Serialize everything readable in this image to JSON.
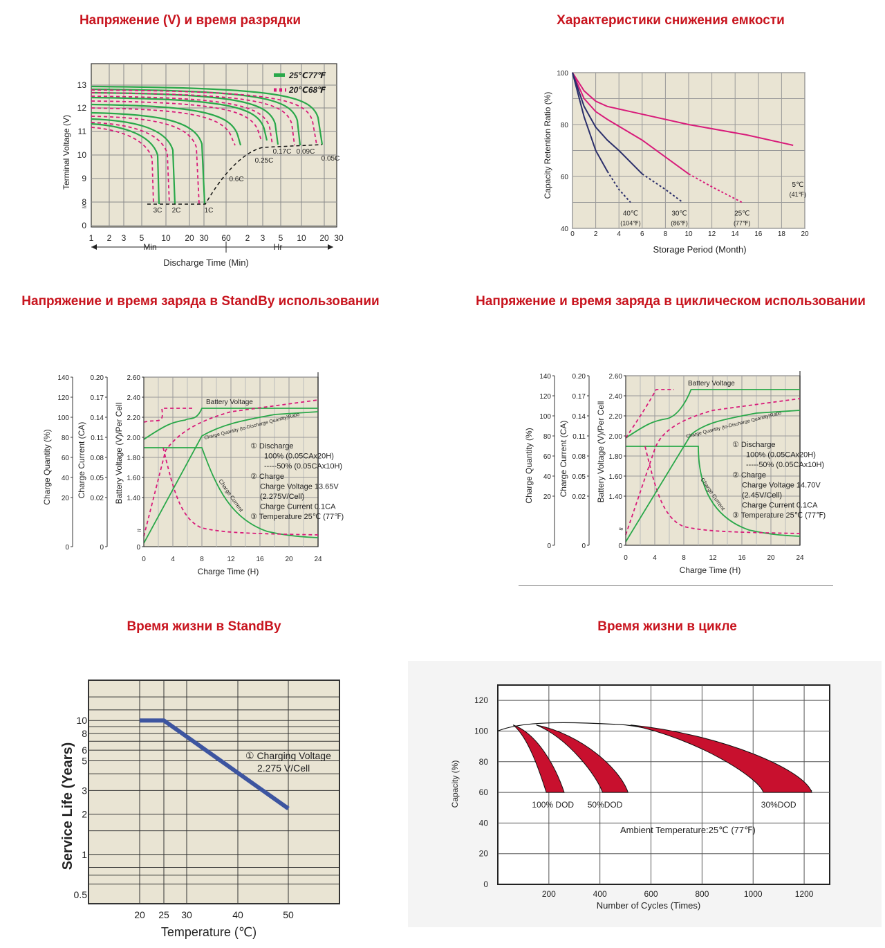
{
  "titles": {
    "t1": "Напряжение (V) и время разрядки",
    "t2": "Характеристики снижения емкости",
    "t3": "Напряжение и время заряда в StandBy использовании",
    "t4": "Напряжение и время заряда в циклическом использовании",
    "t5": "Время жизни в StandBy",
    "t6": "Время жизни в цикле"
  },
  "colors": {
    "title_red": "#c8141e",
    "green": "#2aa84a",
    "magenta": "#d81b7a",
    "navy": "#2b2f6b",
    "blue": "#3d55a0",
    "dark_red": "#c8102e",
    "plot_bg": "#e9e4d3"
  },
  "chart_data": [
    {
      "type": "line",
      "ylabel": "Terminal Voltage (V)",
      "xlabel": "Discharge Time (Min)",
      "y_ticks": [
        "13",
        "12",
        "11",
        "10",
        "9",
        "8",
        "0"
      ],
      "x_ticks": [
        "1",
        "2",
        "3",
        "5",
        "10",
        "20",
        "30",
        "60",
        "2",
        "3",
        "5",
        "10",
        "20",
        "30"
      ],
      "x_unit_labels": [
        "Min",
        "Hr"
      ],
      "legend": [
        "25℃77℉",
        "20℃68℉"
      ],
      "series_labels": [
        "3C",
        "2C",
        "1C",
        "0.6C",
        "0.25C",
        "0.17C",
        "0.09C",
        "0.05C"
      ]
    },
    {
      "type": "line",
      "ylabel": "Capacity Retention Ratio (%)",
      "xlabel": "Storage Period (Month)",
      "ylim": [
        40,
        100
      ],
      "xlim": [
        0,
        20
      ],
      "y_ticks": [
        "100",
        "80",
        "60",
        "40"
      ],
      "x_ticks": [
        "0",
        "2",
        "4",
        "6",
        "8",
        "10",
        "12",
        "14",
        "16",
        "18",
        "20"
      ],
      "series": [
        {
          "name": "5℃ (41℉)",
          "x": [
            0,
            1,
            2,
            3,
            5,
            10,
            15,
            19
          ],
          "y": [
            100,
            93,
            89,
            87,
            85,
            80,
            76,
            72
          ]
        },
        {
          "name": "25℃ (77℉)",
          "x": [
            0,
            1,
            2,
            3,
            6,
            10,
            12,
            14.6
          ],
          "y": [
            100,
            90,
            85,
            82,
            74,
            61,
            56,
            50
          ]
        },
        {
          "name": "30℃ (86℉)",
          "x": [
            0,
            1,
            2,
            3,
            4,
            6,
            8,
            9.5
          ],
          "y": [
            100,
            87,
            79,
            74,
            70,
            61,
            55,
            50
          ]
        },
        {
          "name": "40℃ (104℉)",
          "x": [
            0,
            1,
            2,
            3,
            4,
            5
          ],
          "y": [
            100,
            83,
            70,
            62,
            55,
            50
          ]
        }
      ]
    },
    {
      "type": "line",
      "axis_labels": [
        "Charge Quantity (%)",
        "Charge Current (CA)",
        "Battery Voltage (V)/Per Cell"
      ],
      "xlabel": "Charge Time (H)",
      "x_ticks": [
        "0",
        "4",
        "8",
        "12",
        "16",
        "20",
        "24"
      ],
      "y_ticks_quantity": [
        "140",
        "120",
        "100",
        "80",
        "60",
        "40",
        "20",
        "0"
      ],
      "y_ticks_current": [
        "0.20",
        "0.17",
        "0.14",
        "0.11",
        "0.08",
        "0.05",
        "0.02",
        "0"
      ],
      "y_ticks_voltage": [
        "2.60",
        "2.40",
        "2.20",
        "2.00",
        "1.80",
        "1.60",
        "1.40",
        "0"
      ],
      "curve_labels": [
        "Battery Voltage",
        "Charge Quantity (to-Discharge Quantity)Ratio",
        "Charge Current"
      ],
      "notes": [
        "① Discharge",
        "100% (0.05CAx20H)",
        "-----50% (0.05CAx10H)",
        "② Charge",
        "Charge Voltage 13.65V",
        "(2.275V/Cell)",
        "Charge Current 0.1CA",
        "③ Temperature 25℃ (77℉)"
      ]
    },
    {
      "type": "line",
      "axis_labels": [
        "Charge Quantity (%)",
        "Charge Current (CA)",
        "Battery Voltage (V)/Per Cell"
      ],
      "xlabel": "Charge Time (H)",
      "x_ticks": [
        "0",
        "4",
        "8",
        "12",
        "16",
        "20",
        "24"
      ],
      "y_ticks_quantity": [
        "140",
        "120",
        "100",
        "80",
        "60",
        "40",
        "20",
        "0"
      ],
      "y_ticks_current": [
        "0.20",
        "0.17",
        "0.14",
        "0.11",
        "0.08",
        "0.05",
        "0.02",
        "0"
      ],
      "y_ticks_voltage": [
        "2.60",
        "2.40",
        "2.20",
        "2.00",
        "1.80",
        "1.60",
        "1.40",
        "0"
      ],
      "curve_labels": [
        "Battery Voltage",
        "Charge Quantity (to-Discharge Quantity)Ratio",
        "Charge Current"
      ],
      "notes": [
        "① Discharge",
        "100% (0.05CAx20H)",
        "-----50% (0.05CAx10H)",
        "② Charge",
        "Charge Voltage 14.70V",
        "(2.45V/Cell)",
        "Charge Current 0.1CA",
        "③ Temperature 25℃ (77℉)"
      ]
    },
    {
      "type": "line",
      "ylabel": "Service Life (Years)",
      "xlabel": "Temperature (℃)",
      "x_ticks": [
        "20",
        "25",
        "30",
        "40",
        "50"
      ],
      "y_ticks": [
        "10",
        "8",
        "6",
        "5",
        "3",
        "2",
        "1",
        "0.5"
      ],
      "annotation": [
        "① Charging Voltage",
        "2.275 V/Cell"
      ],
      "series": [
        {
          "x": [
            20,
            25,
            50
          ],
          "y": [
            10,
            10,
            2.2
          ]
        }
      ]
    },
    {
      "type": "area",
      "ylabel": "Capacity (%)",
      "xlabel": "Number of Cycles (Times)",
      "ylim": [
        0,
        130
      ],
      "xlim": [
        0,
        1300
      ],
      "y_ticks": [
        "120",
        "100",
        "80",
        "60",
        "40",
        "20",
        "0"
      ],
      "x_ticks": [
        "200",
        "400",
        "600",
        "800",
        "1000",
        "1200"
      ],
      "annotation": "Ambient Temperature:25℃ (77℉)",
      "series": [
        {
          "name": "100% DOD",
          "cycles_to_60pct": [
            190,
            260
          ]
        },
        {
          "name": "50%DOD",
          "cycles_to_60pct": [
            410,
            510
          ]
        },
        {
          "name": "30%DOD",
          "cycles_to_60pct": [
            1040,
            1230
          ]
        }
      ]
    }
  ]
}
